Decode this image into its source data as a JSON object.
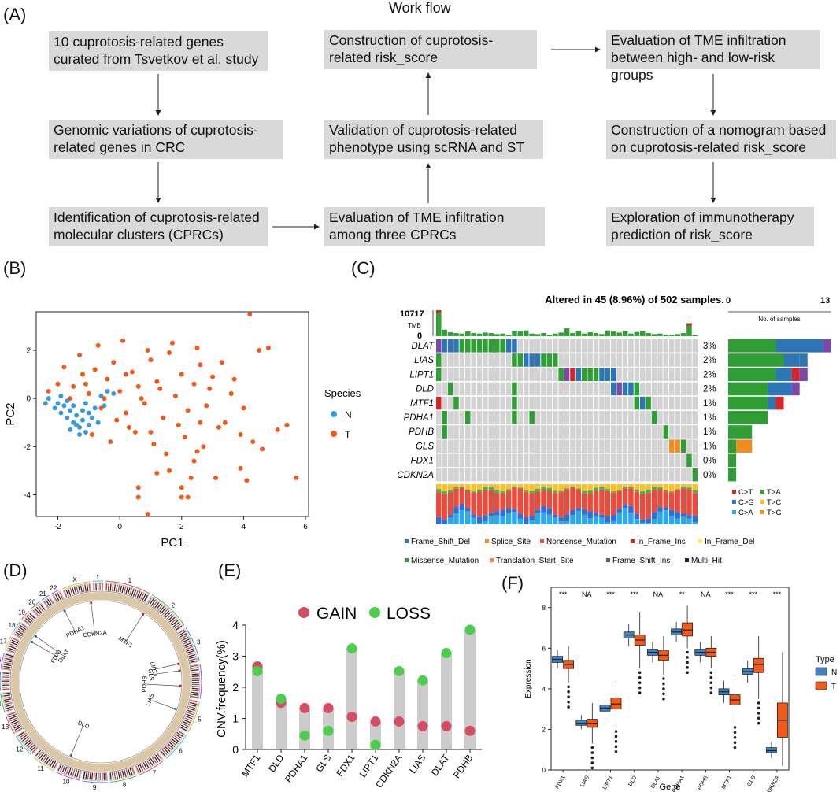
{
  "panelA": {
    "label": "(A)",
    "title": "Work flow",
    "boxes": [
      "10 cuprotosis-related genes curated from Tsvetkov et al. study",
      "Genomic variations of cuprotosis-related genes in CRC",
      "Identification of cuprotosis-related molecular clusters (CPRCs)",
      "Evaluation of TME infiltration among three CPRCs",
      "Validation of cuprotosis-related phenotype using scRNA and ST",
      "Construction of  cuprotosis-related risk_score",
      "Evaluation of TME infiltration between high- and low-risk groups",
      "Construction of a nomogram based on cuprotosis-related risk_score",
      "Exploration of immunotherapy prediction of risk_score"
    ]
  },
  "panelB": {
    "label": "(B)",
    "xlabel": "PC1",
    "ylabel": "PC2",
    "legend_title": "Species",
    "colors": {
      "N": "#3a9ad9",
      "T": "#f05a1a"
    }
  },
  "panelC": {
    "label": "(C)",
    "title": "Altered in 45 (8.96%) of 502 samples.",
    "tmb_max": "10717",
    "tmb_label": "TMB",
    "tmb_min": "0",
    "samples_label": "No. of samples",
    "samples_min": "0",
    "samples_max": "13",
    "genes": [
      "DLAT",
      "LIAS",
      "LIPT1",
      "DLD",
      "MTF1",
      "PDHA1",
      "PDHB",
      "GLS",
      "FDX1",
      "CDKN2A"
    ],
    "percents": [
      "3%",
      "2%",
      "2%",
      "2%",
      "1%",
      "1%",
      "1%",
      "1%",
      "0%",
      "0%"
    ],
    "snv_legend": [
      "C>T",
      "T>A",
      "C>G",
      "T>C",
      "C>A",
      "T>G"
    ],
    "variant_legend_row1": [
      "Frame_Shift_Del",
      "Splice_Site",
      "Nonsense_Mutation",
      "In_Frame_Ins",
      "In_Frame_Del"
    ],
    "variant_legend_row2": [
      "Missense_Mutation",
      "Translation_Start_Site",
      "Frame_Shift_Ins",
      "Multi_Hit"
    ]
  },
  "panelD": {
    "label": "(D)",
    "chromosomes": [
      "1",
      "2",
      "3",
      "4",
      "5",
      "6",
      "7",
      "8",
      "9",
      "10",
      "11",
      "12",
      "13",
      "14",
      "15",
      "16",
      "17",
      "18",
      "19",
      "20",
      "21",
      "22",
      "X",
      "Y"
    ],
    "genes": [
      "MTF1",
      "LIPT1",
      "GLS",
      "PDHB",
      "LIAS",
      "DLD",
      "CDKN2A",
      "DLAT",
      "FDX1",
      "PDHA1"
    ]
  },
  "panelE": {
    "label": "(E)",
    "legend_gain": "GAIN",
    "legend_loss": "LOSS",
    "ylabel": "CNV.frequency(%)"
  },
  "panelF": {
    "label": "(F)",
    "xlabel": "Gene",
    "ylabel": "Expression",
    "legend_title": "Type",
    "legend_items": [
      "N",
      "T"
    ],
    "significance": [
      "***",
      "NA",
      "***",
      "***",
      "NA",
      "**",
      "NA",
      "***",
      "***",
      "***"
    ]
  },
  "chart_data": [
    {
      "type": "scatter",
      "panel": "B",
      "xlabel": "PC1",
      "ylabel": "PC2",
      "xlim": [
        -2.7,
        6.1
      ],
      "ylim": [
        -4.9,
        3.6
      ],
      "xticks": [
        -2,
        0,
        2,
        4,
        6
      ],
      "yticks": [
        -4,
        -2,
        0,
        2
      ],
      "series": [
        {
          "name": "N",
          "color": "#3a9ad9",
          "points": [
            [
              -2.4,
              -0.2
            ],
            [
              -2.3,
              0.0
            ],
            [
              -2.1,
              -0.4
            ],
            [
              -2.0,
              -0.2
            ],
            [
              -1.9,
              -0.6
            ],
            [
              -1.8,
              -0.3
            ],
            [
              -1.7,
              -0.8
            ],
            [
              -1.6,
              -0.5
            ],
            [
              -1.5,
              -1.0
            ],
            [
              -1.4,
              -0.7
            ],
            [
              -1.3,
              -1.2
            ],
            [
              -1.2,
              -0.9
            ],
            [
              -1.1,
              -1.4
            ],
            [
              -1.0,
              -1.1
            ],
            [
              -0.9,
              -0.8
            ],
            [
              -1.7,
              -0.1
            ],
            [
              -1.5,
              -0.3
            ],
            [
              -1.2,
              -0.5
            ],
            [
              -1.0,
              -0.6
            ],
            [
              -0.8,
              -0.4
            ],
            [
              -0.6,
              0.1
            ],
            [
              -0.4,
              0.3
            ],
            [
              -0.2,
              0.2
            ],
            [
              -1.9,
              0.1
            ],
            [
              -1.6,
              -1.3
            ],
            [
              -1.3,
              -1.5
            ],
            [
              -1.1,
              -0.2
            ],
            [
              -0.7,
              -1.0
            ],
            [
              -0.5,
              -0.3
            ],
            [
              -1.4,
              -1.1
            ]
          ]
        },
        {
          "name": "T",
          "color": "#f05a1a",
          "points": [
            [
              -1.5,
              0.5
            ],
            [
              -1.2,
              1.0
            ],
            [
              -1.0,
              0.2
            ],
            [
              -0.8,
              1.2
            ],
            [
              -0.6,
              -0.4
            ],
            [
              -0.4,
              0.8
            ],
            [
              -0.2,
              1.5
            ],
            [
              0.0,
              0.3
            ],
            [
              0.2,
              -0.6
            ],
            [
              0.4,
              1.1
            ],
            [
              0.6,
              0.5
            ],
            [
              0.8,
              -0.2
            ],
            [
              1.0,
              1.6
            ],
            [
              1.2,
              0.7
            ],
            [
              1.4,
              -0.8
            ],
            [
              1.6,
              1.9
            ],
            [
              1.8,
              0.1
            ],
            [
              2.0,
              1.0
            ],
            [
              2.2,
              -0.5
            ],
            [
              2.4,
              0.6
            ],
            [
              2.6,
              1.4
            ],
            [
              2.8,
              -0.3
            ],
            [
              3.0,
              0.9
            ],
            [
              3.2,
              -1.2
            ],
            [
              -1.3,
              1.8
            ],
            [
              -0.7,
              2.2
            ],
            [
              0.1,
              2.4
            ],
            [
              0.9,
              2.0
            ],
            [
              1.7,
              2.3
            ],
            [
              2.5,
              2.1
            ],
            [
              -0.9,
              -1.5
            ],
            [
              -0.3,
              -1.8
            ],
            [
              0.5,
              -1.4
            ],
            [
              1.1,
              -1.9
            ],
            [
              1.5,
              -2.3
            ],
            [
              2.1,
              -1.6
            ],
            [
              2.7,
              -2.0
            ],
            [
              3.4,
              -1.0
            ],
            [
              3.6,
              0.2
            ],
            [
              3.9,
              -1.5
            ],
            [
              4.2,
              3.5
            ],
            [
              4.5,
              2.0
            ],
            [
              4.8,
              2.1
            ],
            [
              5.1,
              -1.3
            ],
            [
              5.4,
              -1.1
            ],
            [
              5.7,
              -3.3
            ],
            [
              4.3,
              -1.8
            ],
            [
              4.6,
              -2.1
            ],
            [
              3.9,
              -2.9
            ],
            [
              4.1,
              -3.4
            ],
            [
              3.1,
              -3.3
            ],
            [
              2.3,
              -3.3
            ],
            [
              2.0,
              -3.7
            ],
            [
              2.0,
              -4.1
            ],
            [
              2.2,
              -4.1
            ],
            [
              1.2,
              -3.1
            ],
            [
              0.9,
              -4.8
            ],
            [
              0.6,
              -3.7
            ],
            [
              0.6,
              -4.1
            ],
            [
              2.5,
              -2.2
            ],
            [
              -2.3,
              0.3
            ],
            [
              -2.0,
              0.6
            ],
            [
              -1.8,
              1.3
            ],
            [
              -1.1,
              0.6
            ],
            [
              -0.1,
              -0.9
            ],
            [
              0.7,
              0.0
            ],
            [
              1.3,
              0.4
            ],
            [
              1.9,
              -1.1
            ],
            [
              2.9,
              0.4
            ],
            [
              3.3,
              1.5
            ],
            [
              3.7,
              0.8
            ],
            [
              4.0,
              -0.4
            ],
            [
              1.6,
              -3.0
            ],
            [
              2.4,
              -2.6
            ],
            [
              0.2,
              1.0
            ],
            [
              -0.5,
              0.0
            ],
            [
              -1.6,
              0.0
            ],
            [
              0.3,
              -1.2
            ],
            [
              1.0,
              -1.4
            ],
            [
              2.6,
              -1.0
            ]
          ]
        }
      ]
    },
    {
      "type": "heatmap",
      "panel": "C",
      "title": "Altered in 45 (8.96%) of 502 samples.",
      "genes": [
        "DLAT",
        "LIAS",
        "LIPT1",
        "DLD",
        "MTF1",
        "PDHA1",
        "PDHB",
        "GLS",
        "FDX1",
        "CDKN2A"
      ],
      "percent_altered": [
        3,
        2,
        2,
        2,
        1,
        1,
        1,
        1,
        0,
        0
      ],
      "sample_counts": [
        13,
        10,
        10,
        9,
        7,
        5,
        3,
        3,
        1,
        1
      ],
      "n_columns": 45,
      "tmb_max": 10717
    },
    {
      "type": "scatter",
      "panel": "E",
      "ylabel": "CNV.frequency(%)",
      "ylim": [
        0,
        4
      ],
      "yticks": [
        0,
        1,
        2,
        3,
        4
      ],
      "categories": [
        "MTF1",
        "DLD",
        "PDHA1",
        "GLS",
        "FDX1",
        "LIPT1",
        "CDKN2A",
        "LIAS",
        "DLAT",
        "PDHB"
      ],
      "series": [
        {
          "name": "GAIN",
          "color": "#d64d63",
          "values": [
            2.67,
            1.5,
            1.33,
            1.33,
            1.05,
            0.9,
            0.9,
            0.75,
            0.75,
            0.6
          ]
        },
        {
          "name": "LOSS",
          "color": "#4dcc4d",
          "values": [
            2.52,
            1.63,
            0.45,
            0.6,
            3.25,
            0.15,
            2.52,
            2.22,
            3.1,
            3.85
          ]
        }
      ]
    },
    {
      "type": "box",
      "panel": "F",
      "xlabel": "Gene",
      "ylabel": "Expression",
      "ylim": [
        0,
        9
      ],
      "yticks": [
        0,
        2,
        4,
        6,
        8
      ],
      "categories": [
        "FDX1",
        "LIAS",
        "LIPT1",
        "DLD",
        "DLAT",
        "PDHA1",
        "PDHB",
        "MTF1",
        "GLS",
        "CDKN2A"
      ],
      "significance": [
        "***",
        "NA",
        "***",
        "***",
        "NA",
        "**",
        "NA",
        "***",
        "***",
        "***"
      ],
      "series": [
        {
          "name": "N",
          "color": "#3d85c6",
          "boxes": [
            [
              5.0,
              5.3,
              5.45,
              5.6,
              5.9
            ],
            [
              2.0,
              2.2,
              2.3,
              2.45,
              2.7
            ],
            [
              2.5,
              2.9,
              3.05,
              3.2,
              3.6
            ],
            [
              6.1,
              6.5,
              6.65,
              6.8,
              7.2
            ],
            [
              5.3,
              5.65,
              5.8,
              5.95,
              6.3
            ],
            [
              6.3,
              6.65,
              6.8,
              6.95,
              7.3
            ],
            [
              5.3,
              5.65,
              5.8,
              5.95,
              6.3
            ],
            [
              3.3,
              3.7,
              3.85,
              4.0,
              4.4
            ],
            [
              4.3,
              4.7,
              4.85,
              5.0,
              5.4
            ],
            [
              0.6,
              0.85,
              0.95,
              1.1,
              1.4
            ]
          ]
        },
        {
          "name": "T",
          "color": "#f05a1a",
          "boxes": [
            [
              4.3,
              5.0,
              5.2,
              5.4,
              6.1
            ],
            [
              1.3,
              2.1,
              2.3,
              2.5,
              3.3
            ],
            [
              2.1,
              3.0,
              3.25,
              3.55,
              4.4
            ],
            [
              5.0,
              6.15,
              6.4,
              6.65,
              7.8
            ],
            [
              4.7,
              5.4,
              5.65,
              5.9,
              6.6
            ],
            [
              6.0,
              6.6,
              6.9,
              7.25,
              8.1
            ],
            [
              5.0,
              5.6,
              5.8,
              6.0,
              6.6
            ],
            [
              2.3,
              3.2,
              3.45,
              3.7,
              4.5
            ],
            [
              3.5,
              4.8,
              5.2,
              5.5,
              6.6
            ],
            [
              0.2,
              1.6,
              2.45,
              3.3,
              5.8
            ]
          ]
        }
      ]
    }
  ]
}
